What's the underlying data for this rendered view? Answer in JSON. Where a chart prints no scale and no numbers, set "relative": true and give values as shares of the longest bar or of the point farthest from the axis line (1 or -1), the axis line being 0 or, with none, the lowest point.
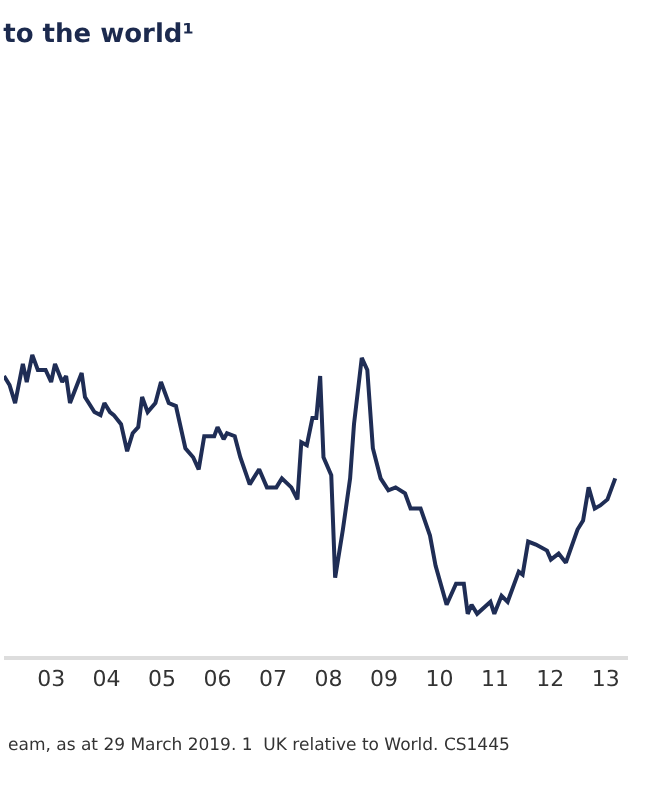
{
  "chart_data": {
    "type": "line",
    "title": "to the world¹",
    "relative": true,
    "marker": "none",
    "line_style": "solid",
    "xlim": [
      2002.15,
      2013.4
    ],
    "xticks": [
      {
        "value": 2003,
        "label": "03"
      },
      {
        "value": 2004,
        "label": "04"
      },
      {
        "value": 2005,
        "label": "05"
      },
      {
        "value": 2006,
        "label": "06"
      },
      {
        "value": 2007,
        "label": "07"
      },
      {
        "value": 2008,
        "label": "08"
      },
      {
        "value": 2009,
        "label": "09"
      },
      {
        "value": 2010,
        "label": "10"
      },
      {
        "value": 2011,
        "label": "11"
      },
      {
        "value": 2012,
        "label": "12"
      },
      {
        "value": 2013,
        "label": "13"
      }
    ],
    "annotations": [
      "eam, as at 29 March 2019. 1  UK relative to World. CS1445"
    ],
    "series": [
      {
        "color": "#1f2d55",
        "x": [
          2002.15,
          2002.25,
          2002.35,
          2002.49,
          2002.56,
          2002.66,
          2002.76,
          2002.9,
          2003.0,
          2003.07,
          2003.2,
          2003.27,
          2003.34,
          2003.55,
          2003.61,
          2003.78,
          2003.89,
          2003.96,
          2004.06,
          2004.13,
          2004.26,
          2004.37,
          2004.47,
          2004.57,
          2004.64,
          2004.74,
          2004.88,
          2004.98,
          2005.12,
          2005.25,
          2005.42,
          2005.56,
          2005.66,
          2005.76,
          2005.83,
          2005.94,
          2006.0,
          2006.11,
          2006.17,
          2006.31,
          2006.41,
          2006.58,
          2006.75,
          2006.89,
          2006.99,
          2007.06,
          2007.16,
          2007.33,
          2007.44,
          2007.51,
          2007.61,
          2007.71,
          2007.78,
          2007.85,
          2007.91,
          2008.05,
          2008.12,
          2008.26,
          2008.39,
          2008.46,
          2008.6,
          2008.7,
          2008.8,
          2008.94,
          2009.08,
          2009.21,
          2009.38,
          2009.48,
          2009.66,
          2009.83,
          2009.93,
          2010.13,
          2010.3,
          2010.44,
          2010.51,
          2010.58,
          2010.68,
          2010.92,
          2010.99,
          2011.12,
          2011.23,
          2011.43,
          2011.5,
          2011.6,
          2011.74,
          2011.94,
          2012.01,
          2012.15,
          2012.28,
          2012.49,
          2012.59,
          2012.69,
          2012.8,
          2012.9,
          2013.03,
          2013.17
        ],
        "values": [
          0.93,
          0.9,
          0.84,
          0.97,
          0.91,
          1,
          0.95,
          0.95,
          0.91,
          0.97,
          0.91,
          0.93,
          0.84,
          0.94,
          0.86,
          0.81,
          0.8,
          0.84,
          0.81,
          0.8,
          0.77,
          0.68,
          0.74,
          0.76,
          0.86,
          0.81,
          0.84,
          0.91,
          0.84,
          0.83,
          0.69,
          0.66,
          0.62,
          0.73,
          0.73,
          0.73,
          0.76,
          0.72,
          0.74,
          0.73,
          0.66,
          0.57,
          0.62,
          0.56,
          0.56,
          0.56,
          0.59,
          0.56,
          0.52,
          0.71,
          0.7,
          0.79,
          0.79,
          0.93,
          0.66,
          0.6,
          0.26,
          0.42,
          0.59,
          0.77,
          0.99,
          0.95,
          0.69,
          0.59,
          0.55,
          0.56,
          0.54,
          0.49,
          0.49,
          0.4,
          0.3,
          0.17,
          0.24,
          0.24,
          0.14,
          0.17,
          0.14,
          0.18,
          0.14,
          0.2,
          0.18,
          0.28,
          0.27,
          0.38,
          0.37,
          0.35,
          0.32,
          0.34,
          0.31,
          0.42,
          0.45,
          0.56,
          0.49,
          0.5,
          0.52,
          0.59
        ]
      }
    ]
  }
}
